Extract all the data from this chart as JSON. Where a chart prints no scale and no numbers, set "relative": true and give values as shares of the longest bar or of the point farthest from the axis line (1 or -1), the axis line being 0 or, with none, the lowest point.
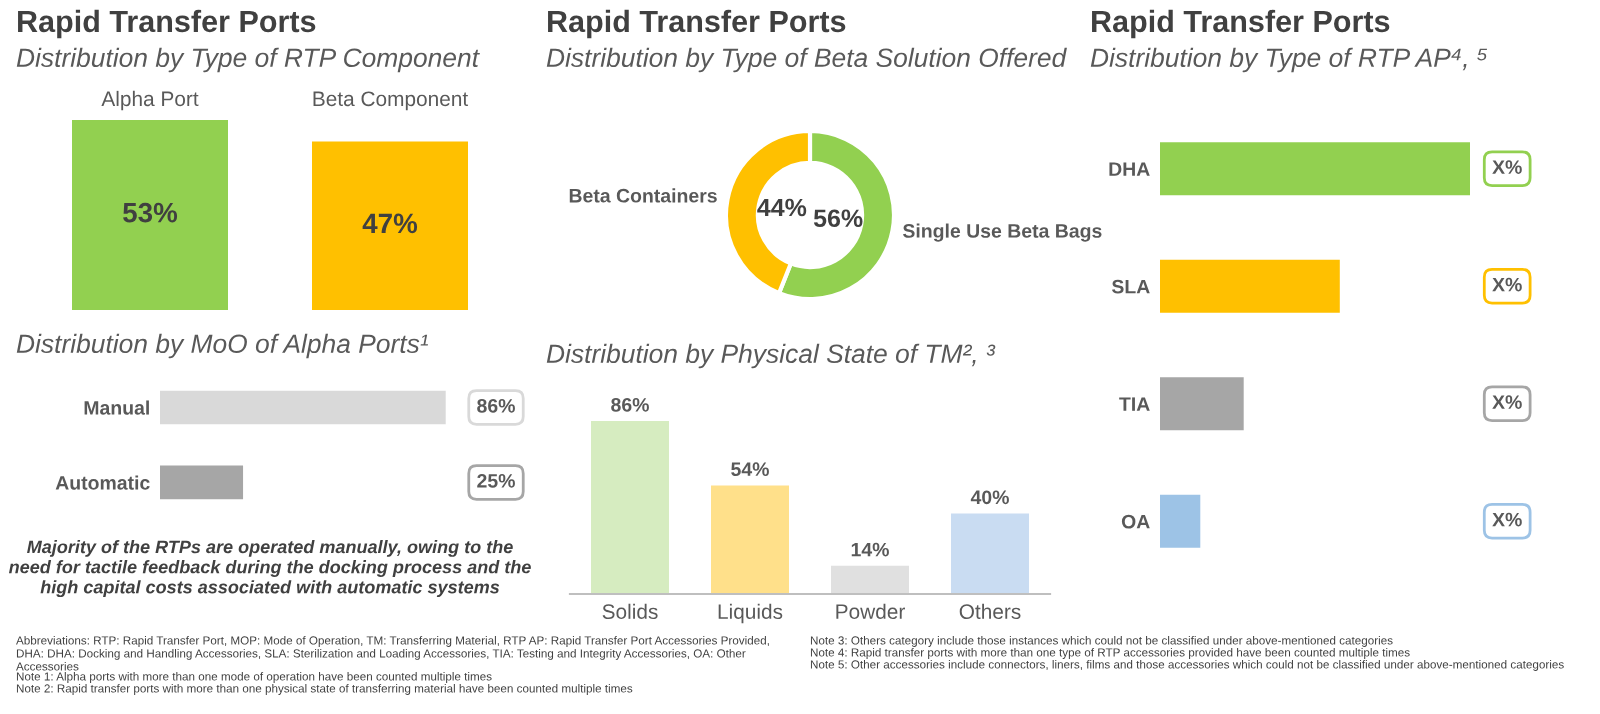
{
  "chart_data": [
    {
      "type": "bar",
      "title": "Rapid Transfer Ports",
      "subtitle": "Distribution by Type of RTP Component",
      "categories": [
        "Alpha Port",
        "Beta Component"
      ],
      "values": [
        53,
        47
      ],
      "colors": [
        "#92d050",
        "#ffc000"
      ],
      "value_labels": [
        "53%",
        "47%"
      ]
    },
    {
      "type": "bar",
      "orientation": "horizontal",
      "subtitle": "Distribution by MoO of Alpha Ports¹",
      "categories": [
        "Manual",
        "Automatic"
      ],
      "values": [
        86,
        25
      ],
      "colors": [
        "#d9d9d9",
        "#a6a6a6"
      ],
      "value_labels": [
        "86%",
        "25%"
      ],
      "annotations": [
        "Majority of the RTPs are operated manually, owing to the need for tactile feedback during the docking process and the high capital costs associated with automatic systems"
      ]
    },
    {
      "type": "donut",
      "title": "Rapid Transfer Ports",
      "subtitle": "Distribution by Type of Beta Solution Offered",
      "categories": [
        "Single Use Beta Bags",
        "Beta Containers"
      ],
      "values": [
        56,
        44
      ],
      "colors": [
        "#92d050",
        "#ffc000"
      ],
      "value_labels": [
        "56%",
        "44%"
      ]
    },
    {
      "type": "bar",
      "subtitle": "Distribution by Physical State of TM², ³",
      "categories": [
        "Solids",
        "Liquids",
        "Powder",
        "Others"
      ],
      "values": [
        86,
        54,
        14,
        40
      ],
      "colors": [
        "#d6ecc0",
        "#ffe08a",
        "#e0e0e0",
        "#c9dcf2"
      ],
      "value_labels": [
        "86%",
        "54%",
        "14%",
        "40%"
      ]
    },
    {
      "type": "bar",
      "orientation": "horizontal",
      "relative": true,
      "title": "Rapid Transfer Ports",
      "subtitle": "Distribution by Type of RTP AP⁴, ⁵",
      "categories": [
        "DHA",
        "SLA",
        "TIA",
        "OA"
      ],
      "values": [
        1,
        0.58,
        0.27,
        0.13
      ],
      "colors": [
        "#92d050",
        "#ffc000",
        "#a6a6a6",
        "#9dc3e6"
      ],
      "annotations": [
        "X%",
        "X%",
        "X%",
        "X%",
        "Abbreviations: RTP: Rapid Transfer Port, MOP: Mode of Operation, TM: Transferring Material, RTP AP: Rapid Transfer Port Accessories Provided, DHA: DHA: Docking and Handling Accessories, SLA: Sterilization and Loading Accessories, TIA: Testing and Integrity Accessories, OA: Other Accessories",
        "Note 1: Alpha ports with more than one mode of operation have been counted multiple times",
        "Note 2: Rapid transfer ports with more than one physical state of transferring material have been counted multiple times",
        "Note 3: Others category include those instances which could not be classified under above-mentioned categories",
        "Note 4: Rapid transfer ports with more than one type of RTP accessories provided have been counted multiple times",
        "Note 5: Other accessories include connectors, liners, films and those accessories which could not be classified under above-mentioned categories"
      ]
    }
  ]
}
